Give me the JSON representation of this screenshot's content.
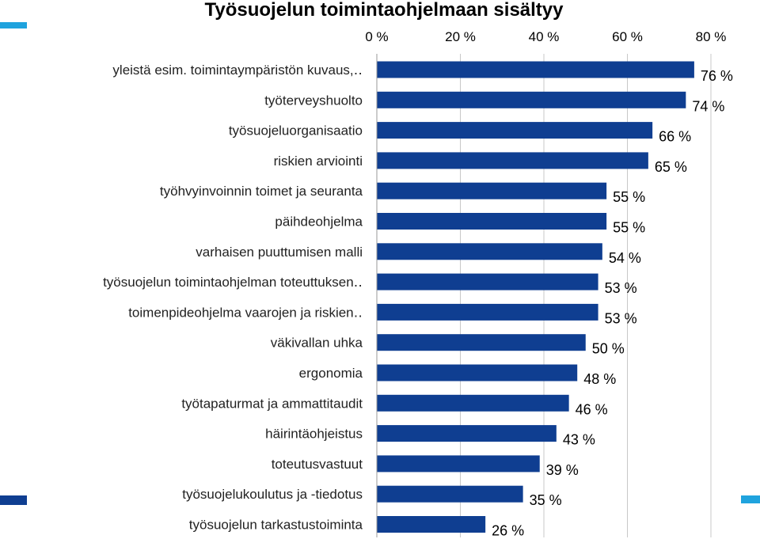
{
  "chart_data": {
    "type": "bar",
    "orientation": "horizontal",
    "title": "Työsuojelun toimintaohjelmaan sisältyy",
    "xlim": [
      0,
      80
    ],
    "xticks": [
      "0 %",
      "20 %",
      "40 %",
      "60 %",
      "80 %"
    ],
    "xtick_values": [
      0,
      20,
      40,
      60,
      80
    ],
    "grid": true,
    "categories": [
      "yleistä esim. toimintaympäristön kuvaus,‥",
      "työterveyshuolto",
      "työsuojeluorganisaatio",
      "riskien arviointi",
      "työhvyinvoinnin toimet ja seuranta",
      "päihdeohjelma",
      "varhaisen puuttumisen malli",
      "työsuojelun toimintaohjelman toteuttuksen‥",
      "toimenpideohjelma vaarojen ja riskien‥",
      "väkivallan uhka",
      "ergonomia",
      "työtapaturmat ja ammattitaudit",
      "häirintäohjeistus",
      "toteutusvastuut",
      "työsuojelukoulutus ja -tiedotus",
      "työsuojelun tarkastustoiminta"
    ],
    "values": [
      76,
      74,
      66,
      65,
      55,
      55,
      54,
      53,
      53,
      50,
      48,
      46,
      43,
      39,
      35,
      26
    ],
    "value_labels": [
      "76 %",
      "74 %",
      "66 %",
      "65 %",
      "55 %",
      "55 %",
      "54 %",
      "53 %",
      "53 %",
      "50 %",
      "48 %",
      "46 %",
      "43 %",
      "39 %",
      "35 %",
      "26 %"
    ],
    "bar_color": "#0f3e91",
    "accent_color": "#1fa3de"
  }
}
